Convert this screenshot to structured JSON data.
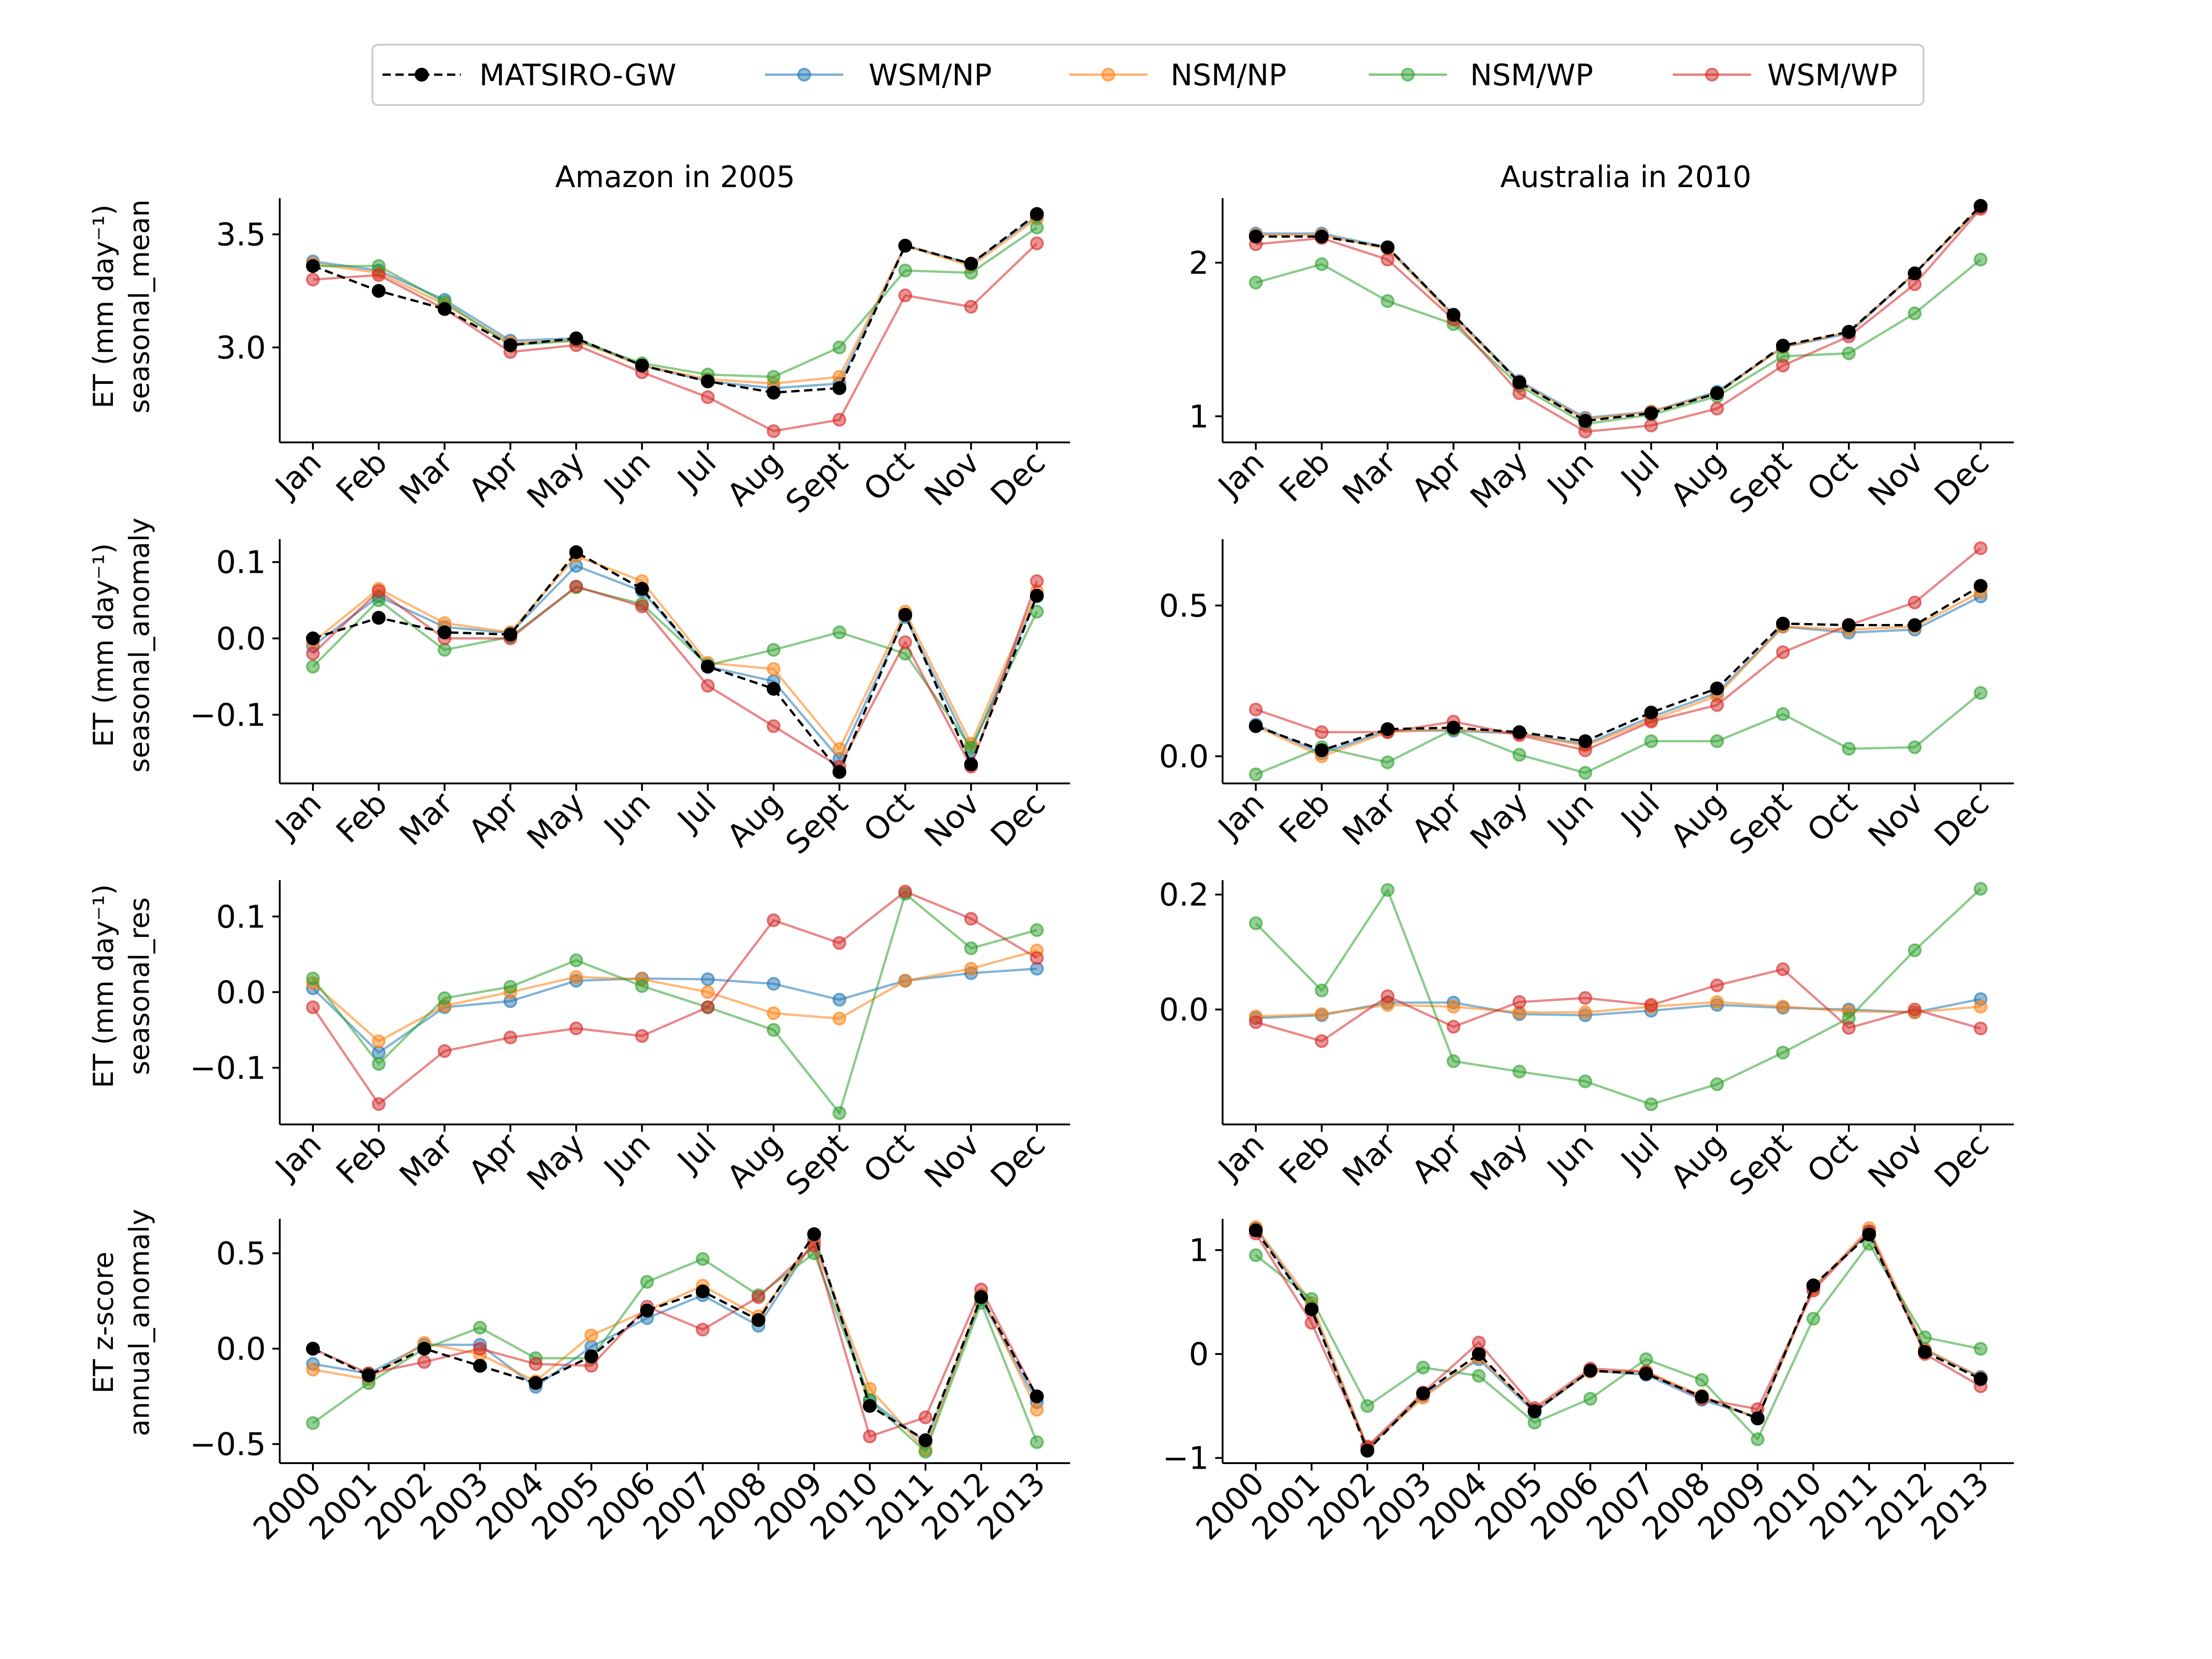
{
  "legend": {
    "placement": "top-center",
    "entries": [
      {
        "name": "MATSIRO-GW",
        "color": "#000000",
        "dashed": true
      },
      {
        "name": "WSM/NP",
        "color": "#1f77b4",
        "dashed": false
      },
      {
        "name": "NSM/NP",
        "color": "#ff7f0e",
        "dashed": false
      },
      {
        "name": "NSM/WP",
        "color": "#2ca02c",
        "dashed": false
      },
      {
        "name": "WSM/WP",
        "color": "#d62728",
        "dashed": false
      }
    ]
  },
  "columns": [
    {
      "title": "Amazon in 2005"
    },
    {
      "title": "Australia in 2010"
    }
  ],
  "row_labels": [
    {
      "line1": "ET (mm day⁻¹)",
      "line2": "seasonal_mean"
    },
    {
      "line1": "ET (mm day⁻¹)",
      "line2": "seasonal_anomaly"
    },
    {
      "line1": "ET (mm day⁻¹)",
      "line2": "seasonal_res"
    },
    {
      "line1": "ET z-score",
      "line2": "annual_anomaly"
    }
  ],
  "chart_data": [
    {
      "type": "line",
      "title": "Amazon in 2005",
      "ylabel": "ET (mm day⁻¹) seasonal_mean",
      "categories": [
        "Jan",
        "Feb",
        "Mar",
        "Apr",
        "May",
        "Jun",
        "Jul",
        "Aug",
        "Sept",
        "Oct",
        "Nov",
        "Dec"
      ],
      "ylim": [
        2.58,
        3.66
      ],
      "yticks": [
        3.0,
        3.5
      ],
      "ytick_labels": [
        "3.0",
        "3.5"
      ],
      "series": [
        {
          "name": "MATSIRO-GW",
          "values": [
            3.36,
            3.25,
            3.17,
            3.01,
            3.04,
            2.92,
            2.85,
            2.8,
            2.82,
            3.45,
            3.37,
            3.59
          ]
        },
        {
          "name": "WSM/NP",
          "values": [
            3.38,
            3.34,
            3.21,
            3.03,
            3.04,
            2.92,
            2.85,
            2.82,
            2.84,
            3.45,
            3.37,
            3.58
          ]
        },
        {
          "name": "NSM/NP",
          "values": [
            3.37,
            3.33,
            3.19,
            3.02,
            3.03,
            2.92,
            2.86,
            2.84,
            2.87,
            3.45,
            3.36,
            3.57
          ]
        },
        {
          "name": "NSM/WP",
          "values": [
            3.36,
            3.36,
            3.2,
            3.01,
            3.03,
            2.93,
            2.88,
            2.87,
            3.0,
            3.34,
            3.33,
            3.53
          ]
        },
        {
          "name": "WSM/WP",
          "values": [
            3.3,
            3.32,
            3.17,
            2.98,
            3.01,
            2.89,
            2.78,
            2.63,
            2.68,
            3.23,
            3.18,
            3.46
          ]
        }
      ]
    },
    {
      "type": "line",
      "title": "Australia in 2010",
      "ylabel": "",
      "categories": [
        "Jan",
        "Feb",
        "Mar",
        "Apr",
        "May",
        "Jun",
        "Jul",
        "Aug",
        "Sept",
        "Oct",
        "Nov",
        "Dec"
      ],
      "ylim": [
        0.83,
        2.42
      ],
      "yticks": [
        1,
        2
      ],
      "ytick_labels": [
        "1",
        "2"
      ],
      "series": [
        {
          "name": "MATSIRO-GW",
          "values": [
            2.17,
            2.17,
            2.1,
            1.66,
            1.22,
            0.97,
            1.02,
            1.15,
            1.46,
            1.55,
            1.93,
            2.37
          ]
        },
        {
          "name": "WSM/NP",
          "values": [
            2.19,
            2.19,
            2.1,
            1.66,
            1.23,
            0.99,
            1.03,
            1.16,
            1.45,
            1.54,
            1.93,
            2.36
          ]
        },
        {
          "name": "NSM/NP",
          "values": [
            2.18,
            2.18,
            2.09,
            1.65,
            1.22,
            0.98,
            1.03,
            1.15,
            1.45,
            1.55,
            1.93,
            2.36
          ]
        },
        {
          "name": "NSM/WP",
          "values": [
            1.87,
            1.99,
            1.75,
            1.6,
            1.2,
            0.95,
            1.01,
            1.13,
            1.39,
            1.41,
            1.67,
            2.02
          ]
        },
        {
          "name": "WSM/WP",
          "values": [
            2.12,
            2.16,
            2.02,
            1.63,
            1.15,
            0.9,
            0.94,
            1.05,
            1.33,
            1.52,
            1.86,
            2.35
          ]
        }
      ]
    },
    {
      "type": "line",
      "title": "",
      "ylabel": "ET (mm day⁻¹) seasonal_anomaly",
      "categories": [
        "Jan",
        "Feb",
        "Mar",
        "Apr",
        "May",
        "Jun",
        "Jul",
        "Aug",
        "Sept",
        "Oct",
        "Nov",
        "Dec"
      ],
      "ylim": [
        -0.19,
        0.13
      ],
      "yticks": [
        0.1,
        0.0,
        -0.1
      ],
      "ytick_labels": [
        "0.1",
        "0.0",
        "−0.1"
      ],
      "series": [
        {
          "name": "MATSIRO-GW",
          "values": [
            0.0,
            0.027,
            0.008,
            0.005,
            0.113,
            0.065,
            -0.037,
            -0.066,
            -0.175,
            0.031,
            -0.165,
            0.056
          ]
        },
        {
          "name": "WSM/NP",
          "values": [
            -0.01,
            0.055,
            0.015,
            0.007,
            0.095,
            0.062,
            -0.037,
            -0.056,
            -0.158,
            0.028,
            -0.147,
            0.055
          ]
        },
        {
          "name": "NSM/NP",
          "values": [
            -0.005,
            0.065,
            0.02,
            0.008,
            0.108,
            0.075,
            -0.032,
            -0.04,
            -0.145,
            0.035,
            -0.138,
            0.062
          ]
        },
        {
          "name": "NSM/WP",
          "values": [
            -0.037,
            0.05,
            -0.015,
            0.002,
            0.067,
            0.045,
            -0.035,
            -0.015,
            0.008,
            -0.02,
            -0.143,
            0.035
          ]
        },
        {
          "name": "WSM/WP",
          "values": [
            -0.02,
            0.062,
            0.0,
            0.0,
            0.068,
            0.042,
            -0.062,
            -0.115,
            -0.168,
            -0.005,
            -0.168,
            0.075
          ]
        }
      ]
    },
    {
      "type": "line",
      "title": "",
      "ylabel": "",
      "categories": [
        "Jan",
        "Feb",
        "Mar",
        "Apr",
        "May",
        "Jun",
        "Jul",
        "Aug",
        "Sept",
        "Oct",
        "Nov",
        "Dec"
      ],
      "ylim": [
        -0.09,
        0.72
      ],
      "yticks": [
        0.5,
        0.0
      ],
      "ytick_labels": [
        "0.5",
        "0.0"
      ],
      "series": [
        {
          "name": "MATSIRO-GW",
          "values": [
            0.1,
            0.02,
            0.09,
            0.095,
            0.08,
            0.05,
            0.145,
            0.225,
            0.44,
            0.435,
            0.435,
            0.565
          ]
        },
        {
          "name": "WSM/NP",
          "values": [
            0.105,
            0.01,
            0.085,
            0.085,
            0.075,
            0.04,
            0.13,
            0.21,
            0.43,
            0.41,
            0.42,
            0.53
          ]
        },
        {
          "name": "NSM/NP",
          "values": [
            0.1,
            0.0,
            0.08,
            0.09,
            0.075,
            0.035,
            0.12,
            0.2,
            0.43,
            0.42,
            0.43,
            0.545
          ]
        },
        {
          "name": "NSM/WP",
          "values": [
            -0.06,
            0.03,
            -0.02,
            0.09,
            0.005,
            -0.055,
            0.05,
            0.05,
            0.14,
            0.025,
            0.03,
            0.21
          ]
        },
        {
          "name": "WSM/WP",
          "values": [
            0.155,
            0.08,
            0.08,
            0.115,
            0.07,
            0.02,
            0.115,
            0.17,
            0.345,
            0.435,
            0.51,
            0.69
          ]
        }
      ]
    },
    {
      "type": "line",
      "title": "",
      "ylabel": "ET (mm day⁻¹) seasonal_res",
      "categories": [
        "Jan",
        "Feb",
        "Mar",
        "Apr",
        "May",
        "Jun",
        "Jul",
        "Aug",
        "Sept",
        "Oct",
        "Nov",
        "Dec"
      ],
      "ylim": [
        -0.175,
        0.148
      ],
      "yticks": [
        0.1,
        0.0,
        -0.1
      ],
      "ytick_labels": [
        "0.1",
        "0.0",
        "−0.1"
      ],
      "series": [
        {
          "name": "WSM/NP",
          "values": [
            0.005,
            -0.08,
            -0.02,
            -0.012,
            0.015,
            0.018,
            0.017,
            0.011,
            -0.01,
            0.015,
            0.025,
            0.031
          ]
        },
        {
          "name": "NSM/NP",
          "values": [
            0.012,
            -0.065,
            -0.018,
            0.0,
            0.02,
            0.017,
            0.0,
            -0.028,
            -0.035,
            0.015,
            0.031,
            0.055
          ]
        },
        {
          "name": "NSM/WP",
          "values": [
            0.018,
            -0.095,
            -0.008,
            0.007,
            0.042,
            0.008,
            -0.02,
            -0.05,
            -0.16,
            0.13,
            0.058,
            0.082
          ]
        },
        {
          "name": "WSM/WP",
          "values": [
            -0.02,
            -0.148,
            -0.078,
            -0.06,
            -0.048,
            -0.058,
            -0.02,
            0.095,
            0.065,
            0.133,
            0.097,
            0.045
          ]
        }
      ]
    },
    {
      "type": "line",
      "title": "",
      "ylabel": "",
      "categories": [
        "Jan",
        "Feb",
        "Mar",
        "Apr",
        "May",
        "Jun",
        "Jul",
        "Aug",
        "Sept",
        "Oct",
        "Nov",
        "Dec"
      ],
      "ylim": [
        -0.2,
        0.225
      ],
      "yticks": [
        0.2,
        0.0
      ],
      "ytick_labels": [
        "0.2",
        "0.0"
      ],
      "series": [
        {
          "name": "WSM/NP",
          "values": [
            -0.015,
            -0.01,
            0.012,
            0.012,
            -0.008,
            -0.01,
            -0.002,
            0.008,
            0.003,
            0.0,
            -0.005,
            0.018
          ]
        },
        {
          "name": "NSM/NP",
          "values": [
            -0.012,
            -0.008,
            0.008,
            0.005,
            -0.005,
            -0.005,
            0.005,
            0.013,
            0.005,
            -0.003,
            -0.005,
            0.005
          ]
        },
        {
          "name": "NSM/WP",
          "values": [
            0.15,
            0.033,
            0.208,
            -0.09,
            -0.108,
            -0.125,
            -0.165,
            -0.13,
            -0.075,
            -0.015,
            0.103,
            0.21
          ]
        },
        {
          "name": "WSM/WP",
          "values": [
            -0.022,
            -0.055,
            0.023,
            -0.03,
            0.013,
            0.02,
            0.008,
            0.042,
            0.07,
            -0.032,
            0.0,
            -0.033
          ]
        }
      ]
    },
    {
      "type": "line",
      "title": "",
      "ylabel": "ET z-score annual_anomaly",
      "categories": [
        "2000",
        "2001",
        "2002",
        "2003",
        "2004",
        "2005",
        "2006",
        "2007",
        "2008",
        "2009",
        "2010",
        "2011",
        "2012",
        "2013"
      ],
      "ylim": [
        -0.6,
        0.68
      ],
      "yticks": [
        0.5,
        0.0,
        -0.5
      ],
      "ytick_labels": [
        "0.5",
        "0.0",
        "−0.5"
      ],
      "series": [
        {
          "name": "MATSIRO-GW",
          "values": [
            0.0,
            -0.14,
            0.0,
            -0.09,
            -0.18,
            -0.04,
            0.2,
            0.3,
            0.15,
            0.6,
            -0.3,
            -0.48,
            0.27,
            -0.25
          ]
        },
        {
          "name": "WSM/NP",
          "values": [
            -0.08,
            -0.13,
            0.02,
            0.02,
            -0.2,
            0.01,
            0.16,
            0.28,
            0.12,
            0.57,
            -0.27,
            -0.49,
            0.26,
            -0.28
          ]
        },
        {
          "name": "NSM/NP",
          "values": [
            -0.11,
            -0.16,
            0.03,
            -0.03,
            -0.17,
            0.07,
            0.2,
            0.33,
            0.17,
            0.56,
            -0.21,
            -0.53,
            0.28,
            -0.32
          ]
        },
        {
          "name": "NSM/WP",
          "values": [
            -0.39,
            -0.18,
            0.0,
            0.11,
            -0.05,
            -0.05,
            0.35,
            0.47,
            0.28,
            0.5,
            -0.27,
            -0.54,
            0.24,
            -0.49
          ]
        },
        {
          "name": "WSM/WP",
          "values": [
            0.0,
            -0.13,
            -0.07,
            0.0,
            -0.08,
            -0.09,
            0.22,
            0.1,
            0.27,
            0.54,
            -0.46,
            -0.36,
            0.31,
            -0.25
          ]
        }
      ]
    },
    {
      "type": "line",
      "title": "",
      "ylabel": "",
      "categories": [
        "2000",
        "2001",
        "2002",
        "2003",
        "2004",
        "2005",
        "2006",
        "2007",
        "2008",
        "2009",
        "2010",
        "2011",
        "2012",
        "2013"
      ],
      "ylim": [
        -1.05,
        1.3
      ],
      "yticks": [
        1,
        0,
        -1
      ],
      "ytick_labels": [
        "1",
        "0",
        "−1"
      ],
      "series": [
        {
          "name": "MATSIRO-GW",
          "values": [
            1.19,
            0.43,
            -0.93,
            -0.38,
            0.0,
            -0.55,
            -0.16,
            -0.19,
            -0.41,
            -0.62,
            0.66,
            1.15,
            0.02,
            -0.24
          ]
        },
        {
          "name": "WSM/NP",
          "values": [
            1.21,
            0.45,
            -0.9,
            -0.4,
            -0.05,
            -0.56,
            -0.16,
            -0.2,
            -0.44,
            -0.61,
            0.64,
            1.18,
            0.04,
            -0.22
          ]
        },
        {
          "name": "NSM/NP",
          "values": [
            1.22,
            0.49,
            -0.9,
            -0.42,
            -0.03,
            -0.54,
            -0.17,
            -0.17,
            -0.4,
            -0.62,
            0.63,
            1.21,
            0.05,
            -0.23
          ]
        },
        {
          "name": "NSM/WP",
          "values": [
            0.95,
            0.53,
            -0.5,
            -0.13,
            -0.21,
            -0.66,
            -0.43,
            -0.05,
            -0.25,
            -0.82,
            0.34,
            1.06,
            0.16,
            0.05
          ]
        },
        {
          "name": "WSM/WP",
          "values": [
            1.16,
            0.3,
            -0.89,
            -0.37,
            0.11,
            -0.52,
            -0.14,
            -0.17,
            -0.43,
            -0.53,
            0.61,
            1.18,
            0.0,
            -0.31
          ]
        }
      ]
    }
  ]
}
